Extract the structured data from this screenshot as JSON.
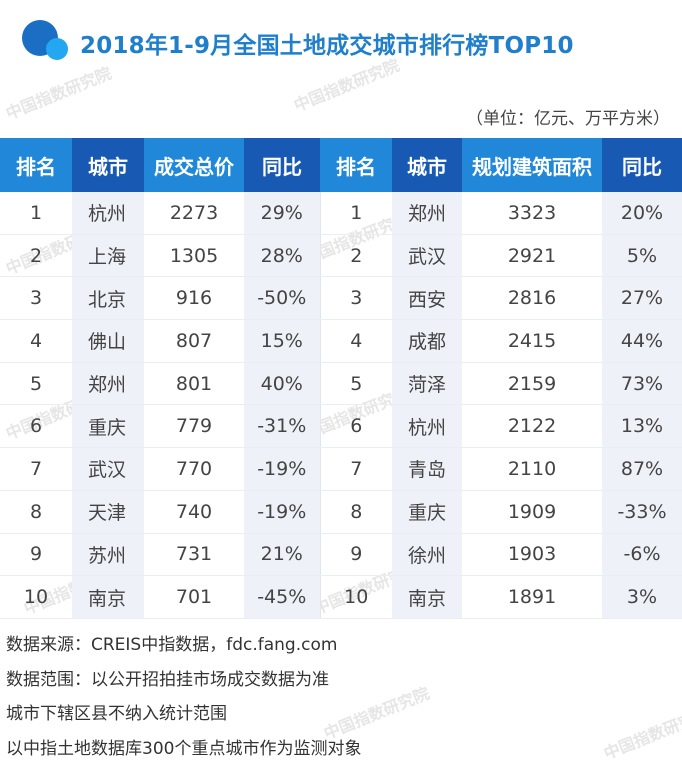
{
  "title": "2018年1-9月全国土地成交城市排行榜TOP10",
  "watermark": "中国指数研究院",
  "unit": "（单位：亿元、万平方米）",
  "table": {
    "headers": [
      "排名",
      "城市",
      "成交总价",
      "同比",
      "排名",
      "城市",
      "规划建筑面积",
      "同比"
    ],
    "rows": [
      {
        "rank_a": "1",
        "city_a": "杭州",
        "price": "2273",
        "yoy_a": "29%",
        "rank_b": "1",
        "city_b": "郑州",
        "area": "3323",
        "yoy_b": "20%"
      },
      {
        "rank_a": "2",
        "city_a": "上海",
        "price": "1305",
        "yoy_a": "28%",
        "rank_b": "2",
        "city_b": "武汉",
        "area": "2921",
        "yoy_b": "5%"
      },
      {
        "rank_a": "3",
        "city_a": "北京",
        "price": "916",
        "yoy_a": "-50%",
        "rank_b": "3",
        "city_b": "西安",
        "area": "2816",
        "yoy_b": "27%"
      },
      {
        "rank_a": "4",
        "city_a": "佛山",
        "price": "807",
        "yoy_a": "15%",
        "rank_b": "4",
        "city_b": "成都",
        "area": "2415",
        "yoy_b": "44%"
      },
      {
        "rank_a": "5",
        "city_a": "郑州",
        "price": "801",
        "yoy_a": "40%",
        "rank_b": "5",
        "city_b": "菏泽",
        "area": "2159",
        "yoy_b": "73%"
      },
      {
        "rank_a": "6",
        "city_a": "重庆",
        "price": "779",
        "yoy_a": "-31%",
        "rank_b": "6",
        "city_b": "杭州",
        "area": "2122",
        "yoy_b": "13%"
      },
      {
        "rank_a": "7",
        "city_a": "武汉",
        "price": "770",
        "yoy_a": "-19%",
        "rank_b": "7",
        "city_b": "青岛",
        "area": "2110",
        "yoy_b": "87%"
      },
      {
        "rank_a": "8",
        "city_a": "天津",
        "price": "740",
        "yoy_a": "-19%",
        "rank_b": "8",
        "city_b": "重庆",
        "area": "1909",
        "yoy_b": "-33%"
      },
      {
        "rank_a": "9",
        "city_a": "苏州",
        "price": "731",
        "yoy_a": "21%",
        "rank_b": "9",
        "city_b": "徐州",
        "area": "1903",
        "yoy_b": "-6%"
      },
      {
        "rank_a": "10",
        "city_a": "南京",
        "price": "701",
        "yoy_a": "-45%",
        "rank_b": "10",
        "city_b": "南京",
        "area": "1891",
        "yoy_b": "3%"
      }
    ]
  },
  "footer": [
    "数据来源：CREIS中指数据，fdc.fang.com",
    "数据范围：以公开招拍挂市场成交数据为准",
    "城市下辖区县不纳入统计范围",
    "以中指土地数据库300个重点城市作为监测对象"
  ],
  "colors": {
    "title": "#1f7fcb",
    "header_blue": "#2188d9",
    "header_dark": "#1859b4",
    "shade": "#eef2f8",
    "logo_dark": "#1a6fc4",
    "logo_light": "#22a7f0"
  }
}
